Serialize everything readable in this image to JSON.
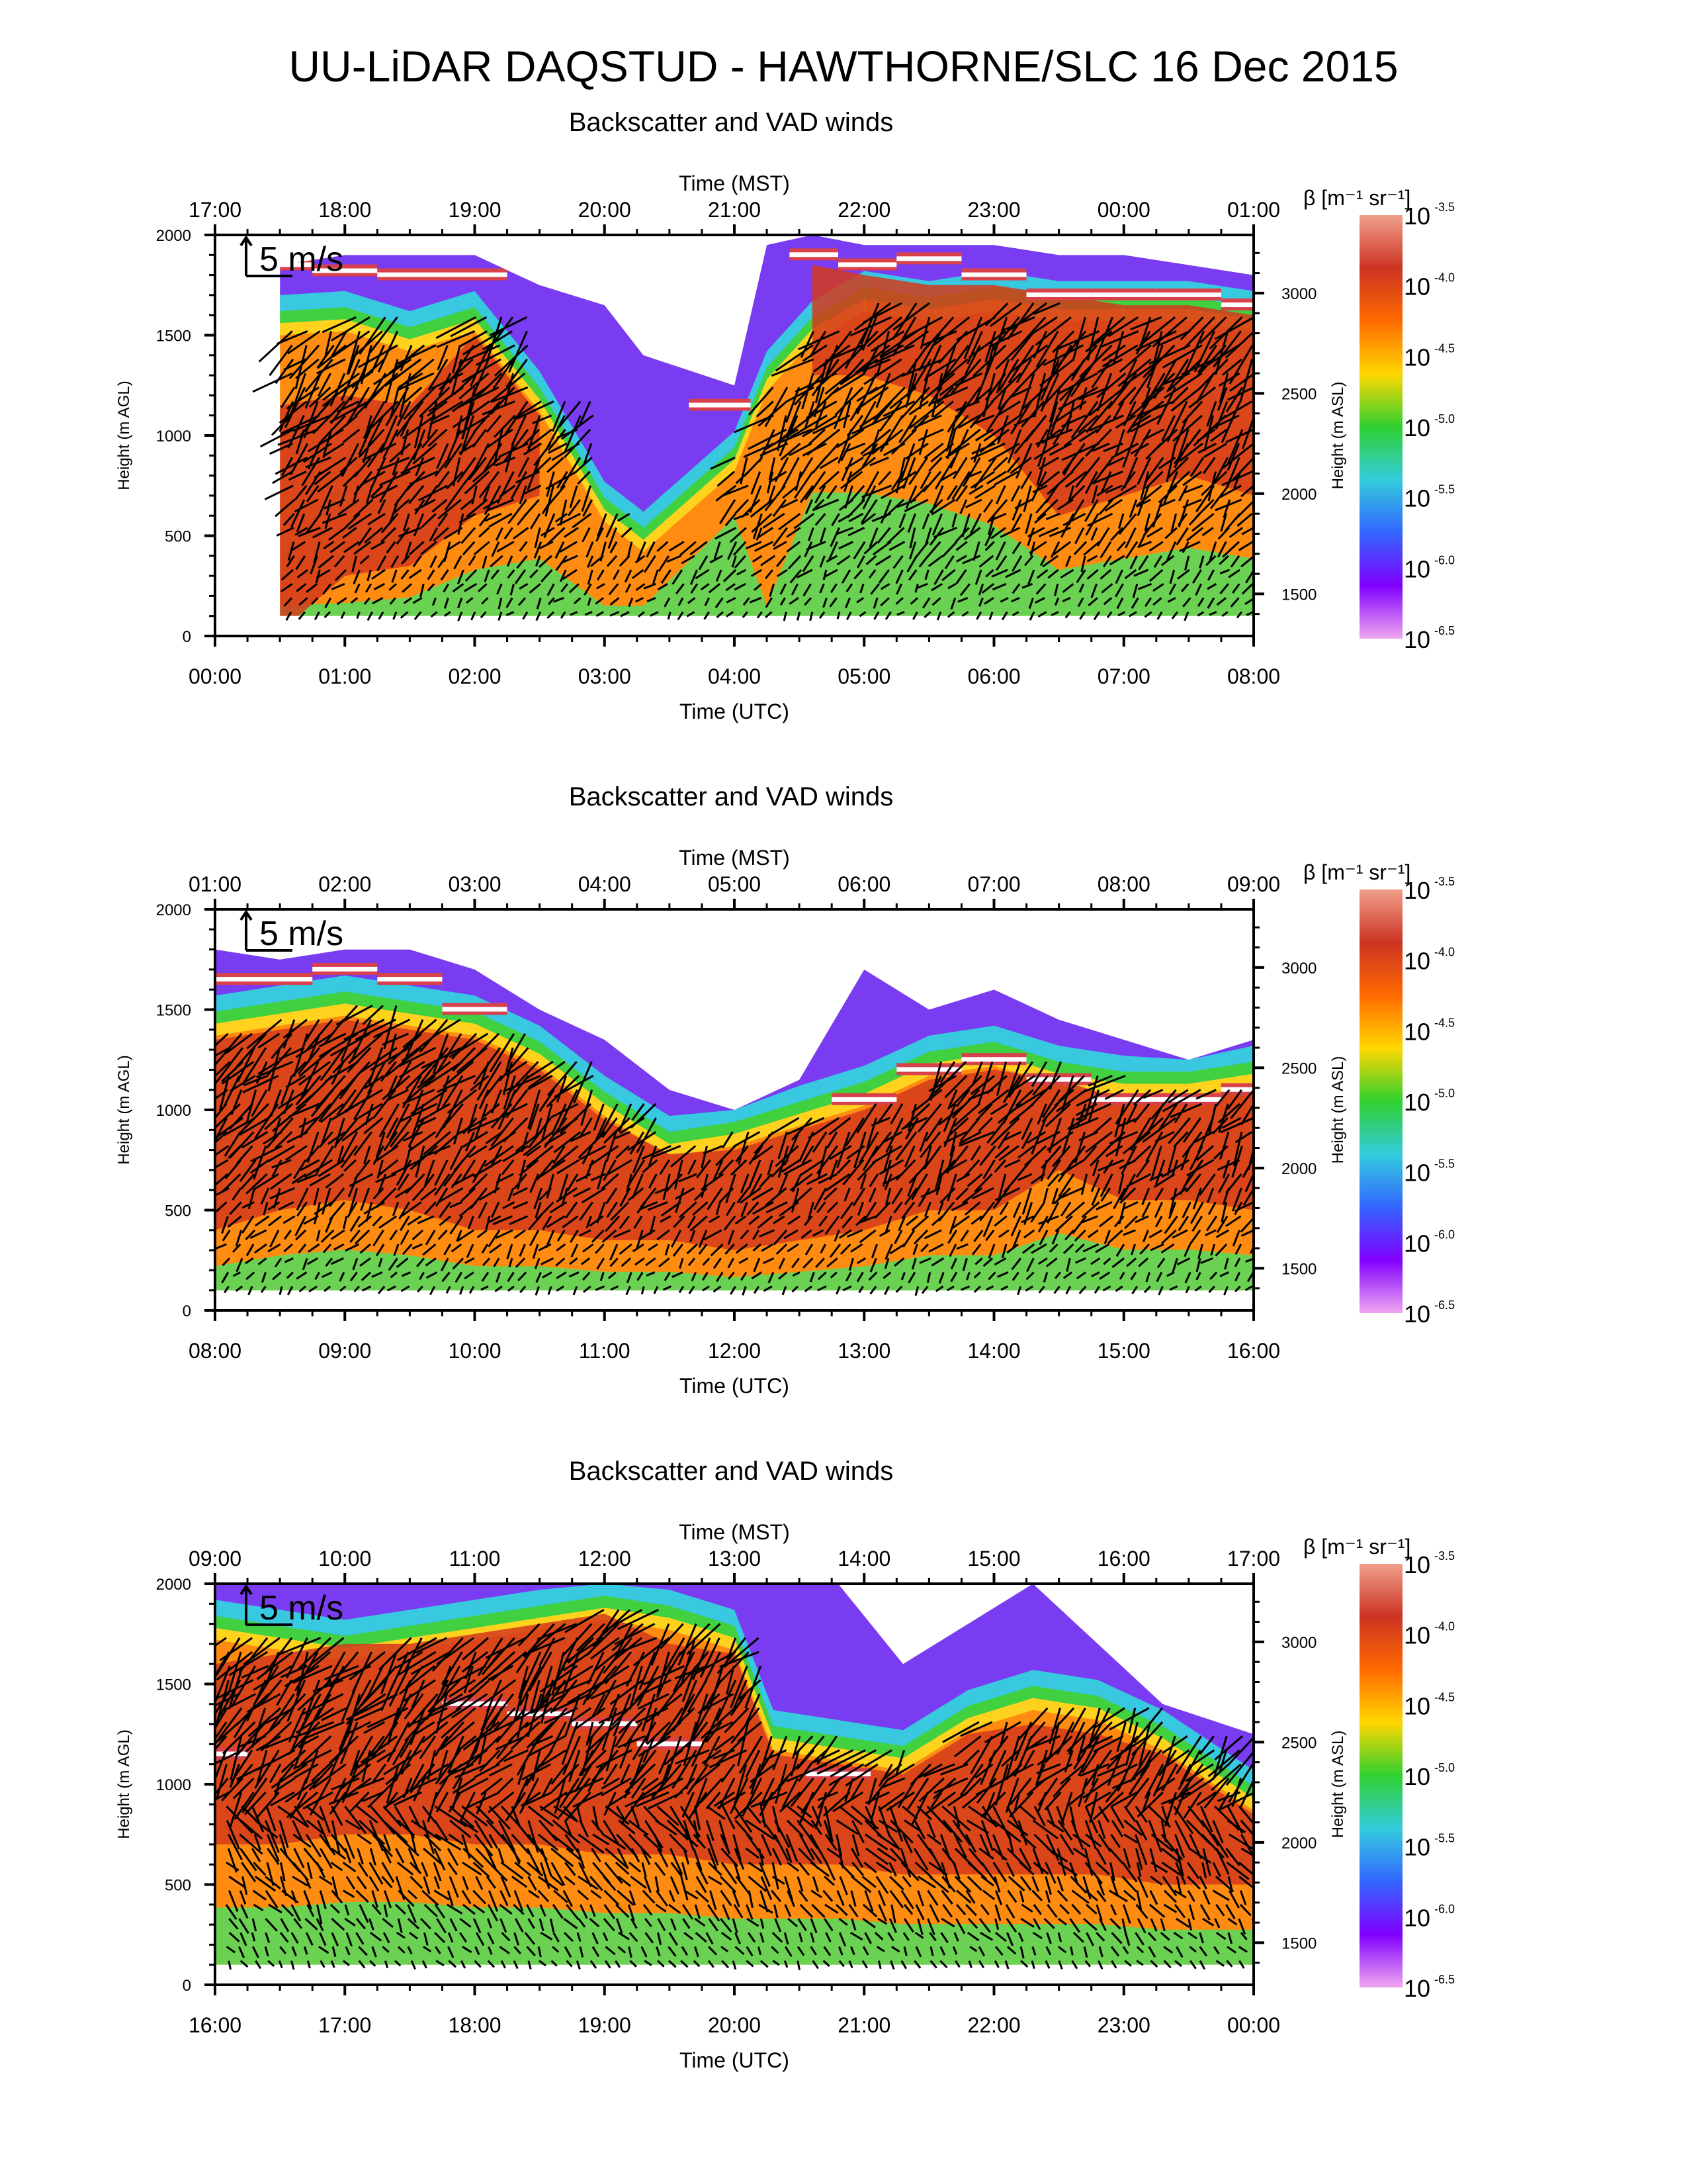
{
  "page": {
    "title": "UU-LiDAR DAQSTUD - HAWTHORNE/SLC 16 Dec 2015"
  },
  "colorbar": {
    "label": "β [m⁻¹ sr⁻¹]",
    "ticks": [
      {
        "base": "10",
        "exp": "-3.5"
      },
      {
        "base": "10",
        "exp": "-4.0"
      },
      {
        "base": "10",
        "exp": "-4.5"
      },
      {
        "base": "10",
        "exp": "-5.0"
      },
      {
        "base": "10",
        "exp": "-5.5"
      },
      {
        "base": "10",
        "exp": "-6.0"
      },
      {
        "base": "10",
        "exp": "-6.5"
      }
    ],
    "colors": [
      "#f0a08c",
      "#cc3322",
      "#ff6a00",
      "#ffd700",
      "#30d030",
      "#33ccdd",
      "#3366ff",
      "#8000ff",
      "#f0a8f0"
    ]
  },
  "chart_data": [
    {
      "type": "heatmap",
      "title": "Backscatter and VAD winds",
      "top_axis_label": "Time (MST)",
      "top_ticks": [
        "17:00",
        "18:00",
        "19:00",
        "20:00",
        "21:00",
        "22:00",
        "23:00",
        "00:00",
        "01:00"
      ],
      "bottom_axis_label": "Time (UTC)",
      "bottom_ticks": [
        "00:00",
        "01:00",
        "02:00",
        "03:00",
        "04:00",
        "05:00",
        "06:00",
        "07:00",
        "08:00"
      ],
      "ylabel": "Height (m AGL)",
      "ylim": [
        0,
        2000
      ],
      "yticks": [
        "0",
        "500",
        "1000",
        "1500",
        "2000"
      ],
      "y2label": "Height (m ASL)",
      "y2ticks": [
        "1500",
        "2000",
        "2500",
        "3000"
      ],
      "wind_scale_label": "5 m/s",
      "data_start_hour": 0.5,
      "columns": [
        {
          "t": 0.5,
          "aerosol_top": 1580,
          "layer": [
            20,
            1150
          ],
          "cloud": 1850,
          "col_max": 1850
        },
        {
          "t": 1.0,
          "aerosol_top": 1600,
          "layer": [
            300,
            1200
          ],
          "cloud": 1820,
          "col_max": 1900
        },
        {
          "t": 1.5,
          "aerosol_top": 1500,
          "layer": [
            350,
            1150
          ],
          "cloud": 1800,
          "col_max": 1900
        },
        {
          "t": 2.0,
          "aerosol_top": 1600,
          "layer": [
            600,
            1500
          ],
          "cloud": 1800,
          "col_max": 1900
        },
        {
          "t": 2.5,
          "aerosol_top": 1200,
          "layer": [
            700,
            1100
          ],
          "cloud": 0,
          "col_max": 1750
        },
        {
          "t": 3.0,
          "aerosol_top": 650,
          "layer": [
            0,
            0
          ],
          "cloud": 0,
          "col_max": 1650
        },
        {
          "t": 3.3,
          "aerosol_top": 500,
          "layer": [
            0,
            0
          ],
          "cloud": 0,
          "col_max": 1400
        },
        {
          "t": 4.0,
          "aerosol_top": 900,
          "layer": [
            1080,
            1200
          ],
          "cloud": 1150,
          "col_max": 1250
        },
        {
          "t": 4.25,
          "aerosol_top": 1300,
          "layer": [
            0,
            0
          ],
          "cloud": 0,
          "col_max": 1950
        },
        {
          "t": 4.6,
          "aerosol_top": 1550,
          "layer": [
            1300,
            1850
          ],
          "cloud": 1900,
          "col_max": 2000
        },
        {
          "t": 5.0,
          "aerosol_top": 1700,
          "layer": [
            1300,
            1800
          ],
          "cloud": 1850,
          "col_max": 1950
        },
        {
          "t": 5.5,
          "aerosol_top": 1650,
          "layer": [
            1200,
            1750
          ],
          "cloud": 1880,
          "col_max": 1950
        },
        {
          "t": 6.0,
          "aerosol_top": 1700,
          "layer": [
            1000,
            1750
          ],
          "cloud": 1800,
          "col_max": 1950
        },
        {
          "t": 6.5,
          "aerosol_top": 1650,
          "layer": [
            600,
            1700
          ],
          "cloud": 1700,
          "col_max": 1900
        },
        {
          "t": 7.0,
          "aerosol_top": 1650,
          "layer": [
            700,
            1650
          ],
          "cloud": 1700,
          "col_max": 1900
        },
        {
          "t": 7.5,
          "aerosol_top": 1650,
          "layer": [
            800,
            1650
          ],
          "cloud": 1700,
          "col_max": 1850
        },
        {
          "t": 8.0,
          "aerosol_top": 1600,
          "layer": [
            700,
            1600
          ],
          "cloud": 1650,
          "col_max": 1800
        }
      ]
    },
    {
      "type": "heatmap",
      "title": "Backscatter and VAD winds",
      "top_axis_label": "Time (MST)",
      "top_ticks": [
        "01:00",
        "02:00",
        "03:00",
        "04:00",
        "05:00",
        "06:00",
        "07:00",
        "08:00",
        "09:00"
      ],
      "bottom_axis_label": "Time (UTC)",
      "bottom_ticks": [
        "08:00",
        "09:00",
        "10:00",
        "11:00",
        "12:00",
        "13:00",
        "14:00",
        "15:00",
        "16:00"
      ],
      "ylabel": "Height (m AGL)",
      "ylim": [
        0,
        2000
      ],
      "yticks": [
        "0",
        "500",
        "1000",
        "1500",
        "2000"
      ],
      "y2label": "Height (m ASL)",
      "y2ticks": [
        "1500",
        "2000",
        "2500",
        "3000"
      ],
      "wind_scale_label": "5 m/s",
      "data_start_hour": 0.0,
      "columns": [
        {
          "t": 0.0,
          "aerosol_top": 1450,
          "layer": [
            400,
            1350
          ],
          "cloud": 1650,
          "col_max": 1800
        },
        {
          "t": 0.5,
          "aerosol_top": 1500,
          "layer": [
            500,
            1400
          ],
          "cloud": 1650,
          "col_max": 1750
        },
        {
          "t": 1.0,
          "aerosol_top": 1550,
          "layer": [
            550,
            1450
          ],
          "cloud": 1700,
          "col_max": 1800
        },
        {
          "t": 1.5,
          "aerosol_top": 1500,
          "layer": [
            500,
            1400
          ],
          "cloud": 1650,
          "col_max": 1800
        },
        {
          "t": 2.0,
          "aerosol_top": 1450,
          "layer": [
            400,
            1350
          ],
          "cloud": 1500,
          "col_max": 1700
        },
        {
          "t": 2.5,
          "aerosol_top": 1300,
          "layer": [
            400,
            1200
          ],
          "cloud": 0,
          "col_max": 1500
        },
        {
          "t": 3.0,
          "aerosol_top": 1050,
          "layer": [
            350,
            950
          ],
          "cloud": 0,
          "col_max": 1350
        },
        {
          "t": 3.5,
          "aerosol_top": 850,
          "layer": [
            350,
            780
          ],
          "cloud": 0,
          "col_max": 1100
        },
        {
          "t": 4.0,
          "aerosol_top": 900,
          "layer": [
            300,
            800
          ],
          "cloud": 0,
          "col_max": 1000
        },
        {
          "t": 4.5,
          "aerosol_top": 1000,
          "layer": [
            350,
            900
          ],
          "cloud": 0,
          "col_max": 1150
        },
        {
          "t": 5.0,
          "aerosol_top": 1100,
          "layer": [
            400,
            1000
          ],
          "cloud": 1050,
          "col_max": 1700
        },
        {
          "t": 5.5,
          "aerosol_top": 1250,
          "layer": [
            500,
            1150
          ],
          "cloud": 1200,
          "col_max": 1500
        },
        {
          "t": 6.0,
          "aerosol_top": 1300,
          "layer": [
            500,
            1200
          ],
          "cloud": 1250,
          "col_max": 1600
        },
        {
          "t": 6.5,
          "aerosol_top": 1200,
          "layer": [
            700,
            1150
          ],
          "cloud": 1150,
          "col_max": 1450
        },
        {
          "t": 7.0,
          "aerosol_top": 1150,
          "layer": [
            550,
            1050
          ],
          "cloud": 1050,
          "col_max": 1350
        },
        {
          "t": 7.5,
          "aerosol_top": 1150,
          "layer": [
            550,
            1050
          ],
          "cloud": 1050,
          "col_max": 1250
        },
        {
          "t": 8.0,
          "aerosol_top": 1200,
          "layer": [
            500,
            1100
          ],
          "cloud": 1100,
          "col_max": 1350
        }
      ]
    },
    {
      "type": "heatmap",
      "title": "Backscatter and VAD winds",
      "top_axis_label": "Time (MST)",
      "top_ticks": [
        "09:00",
        "10:00",
        "11:00",
        "12:00",
        "13:00",
        "14:00",
        "15:00",
        "16:00",
        "17:00"
      ],
      "bottom_axis_label": "Time (UTC)",
      "bottom_ticks": [
        "16:00",
        "17:00",
        "18:00",
        "19:00",
        "20:00",
        "21:00",
        "22:00",
        "23:00",
        "00:00"
      ],
      "ylabel": "Height (m AGL)",
      "ylim": [
        0,
        2000
      ],
      "yticks": [
        "0",
        "500",
        "1000",
        "1500",
        "2000"
      ],
      "y2label": "Height (m ASL)",
      "y2ticks": [
        "1500",
        "2000",
        "2500",
        "3000"
      ],
      "wind_scale_label": "5 m/s",
      "data_start_hour": 0.0,
      "columns": [
        {
          "t": 0.0,
          "aerosol_top": 1800,
          "layer": [
            700,
            1600
          ],
          "cloud": 1150,
          "col_max": 2000
        },
        {
          "t": 0.5,
          "aerosol_top": 1750,
          "layer": [
            700,
            1650
          ],
          "cloud": 0,
          "col_max": 2000
        },
        {
          "t": 1.0,
          "aerosol_top": 1700,
          "layer": [
            750,
            1700
          ],
          "cloud": 0,
          "col_max": 2000
        },
        {
          "t": 1.5,
          "aerosol_top": 1750,
          "layer": [
            750,
            1700
          ],
          "cloud": 0,
          "col_max": 2000
        },
        {
          "t": 2.0,
          "aerosol_top": 1800,
          "layer": [
            700,
            1750
          ],
          "cloud": 1400,
          "col_max": 2000
        },
        {
          "t": 2.5,
          "aerosol_top": 1850,
          "layer": [
            700,
            1800
          ],
          "cloud": 1350,
          "col_max": 2000
        },
        {
          "t": 3.0,
          "aerosol_top": 1900,
          "layer": [
            650,
            1850
          ],
          "cloud": 1300,
          "col_max": 2000
        },
        {
          "t": 3.5,
          "aerosol_top": 1850,
          "layer": [
            650,
            1700
          ],
          "cloud": 1200,
          "col_max": 2000
        },
        {
          "t": 4.0,
          "aerosol_top": 1750,
          "layer": [
            600,
            1650
          ],
          "cloud": 0,
          "col_max": 2000
        },
        {
          "t": 4.3,
          "aerosol_top": 1250,
          "layer": [
            600,
            1150
          ],
          "cloud": 0,
          "col_max": 2000
        },
        {
          "t": 4.8,
          "aerosol_top": 1200,
          "layer": [
            600,
            1100
          ],
          "cloud": 1050,
          "col_max": 2000
        },
        {
          "t": 5.3,
          "aerosol_top": 1150,
          "layer": [
            550,
            1050
          ],
          "cloud": 0,
          "col_max": 1600
        },
        {
          "t": 5.8,
          "aerosol_top": 1350,
          "layer": [
            550,
            1250
          ],
          "cloud": 0,
          "col_max": 1800
        },
        {
          "t": 6.3,
          "aerosol_top": 1450,
          "layer": [
            550,
            1300
          ],
          "cloud": 0,
          "col_max": 2000
        },
        {
          "t": 6.8,
          "aerosol_top": 1400,
          "layer": [
            550,
            1250
          ],
          "cloud": 0,
          "col_max": 1700
        },
        {
          "t": 7.3,
          "aerosol_top": 1250,
          "layer": [
            500,
            1150
          ],
          "cloud": 0,
          "col_max": 1400
        },
        {
          "t": 8.0,
          "aerosol_top": 950,
          "layer": [
            500,
            850
          ],
          "cloud": 0,
          "col_max": 1250
        }
      ]
    }
  ]
}
